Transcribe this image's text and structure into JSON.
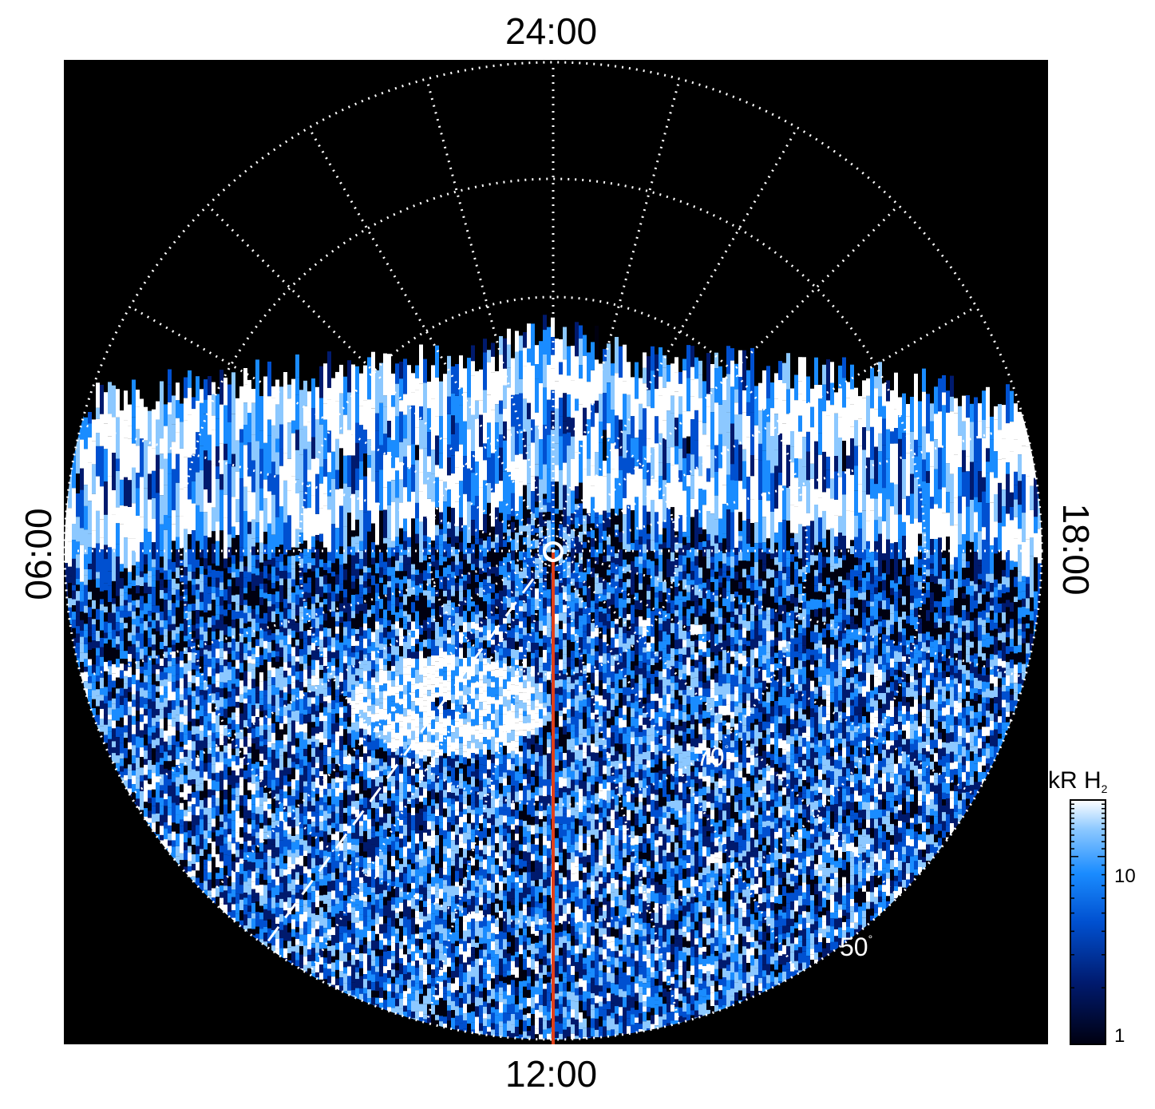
{
  "labels": {
    "top": "24:00",
    "bottom": "12:00",
    "left": "06:00",
    "right": "18:00"
  },
  "lat_labels": [
    "70",
    "50"
  ],
  "colorbar": {
    "title": "kR H",
    "title_subscript": "2",
    "ticks": [
      "10",
      "1"
    ],
    "colors": [
      "#000010",
      "#001a6e",
      "#0050d0",
      "#1a8cff",
      "#8cc8ff",
      "#ffffff"
    ]
  },
  "colors": {
    "background": "#000000",
    "grid": "#ffffff",
    "meridian": "#e0401a"
  }
}
